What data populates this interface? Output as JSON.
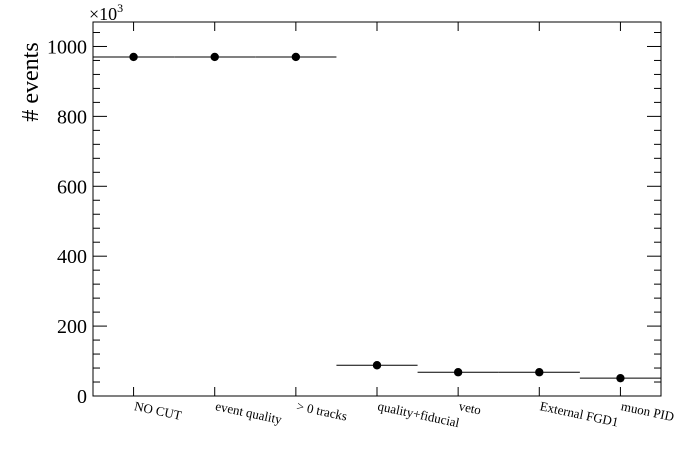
{
  "chart_data": {
    "type": "scatter",
    "ylabel": "# events",
    "y_multiplier": "×10",
    "y_multiplier_exp": "3",
    "ylim": [
      0,
      1070
    ],
    "y_ticks": [
      0,
      200,
      400,
      600,
      800,
      1000
    ],
    "y_tick_labels": [
      "0",
      "200",
      "400",
      "600",
      "800",
      "1000"
    ],
    "categories": [
      "NO CUT",
      "event quality",
      "> 0 tracks",
      "quality+fiducial",
      "veto",
      "External FGD1",
      "muon PID"
    ],
    "values": [
      970,
      970,
      970,
      88,
      68,
      68,
      51
    ],
    "grid": false,
    "legend": "none"
  }
}
